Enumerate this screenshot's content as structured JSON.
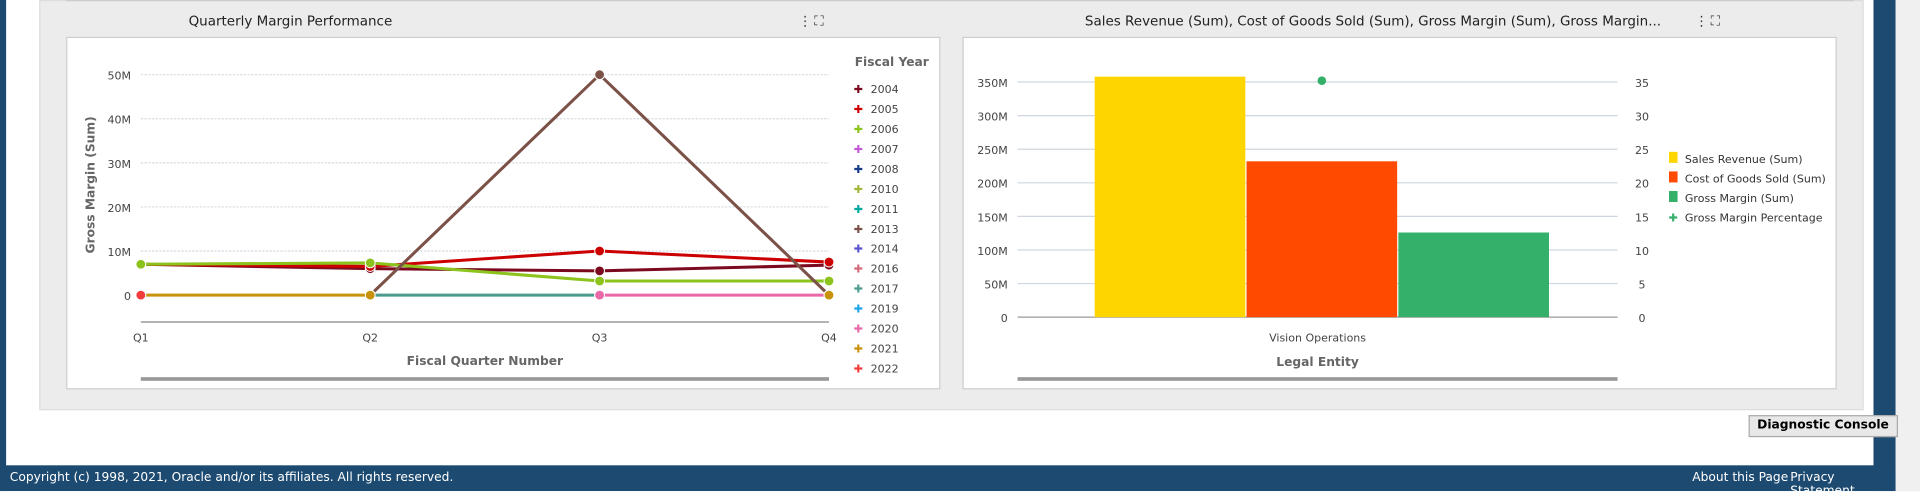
{
  "left_panel": {
    "title": "Quarterly Margin Performance",
    "menu_icon": "more-vertical-icon",
    "maximize_icon": "maximize-icon"
  },
  "right_panel": {
    "title": "Sales Revenue (Sum), Cost of Goods Sold (Sum), Gross Margin (Sum), Gross Margin...",
    "menu_icon": "more-vertical-icon",
    "maximize_icon": "maximize-icon"
  },
  "chart_data": [
    {
      "type": "line",
      "title": "Quarterly Margin Performance",
      "xlabel": "Fiscal Quarter Number",
      "ylabel": "Gross Margin (Sum)",
      "categories": [
        "Q1",
        "Q2",
        "Q3",
        "Q4"
      ],
      "ylim": [
        0,
        50000000
      ],
      "yticks": [
        "0",
        "10M",
        "20M",
        "30M",
        "40M",
        "50M"
      ],
      "legend_title": "Fiscal Year",
      "legend_position": "right",
      "series": [
        {
          "name": "2004",
          "color": "#7b0a1f",
          "values": [
            7000000,
            6000000,
            5500000,
            6800000
          ]
        },
        {
          "name": "2005",
          "color": "#cc0000",
          "values": [
            7000000,
            6500000,
            10000000,
            7500000
          ]
        },
        {
          "name": "2006",
          "color": "#8cc31c",
          "values": [
            7000000,
            7300000,
            3200000,
            3200000
          ]
        },
        {
          "name": "2007",
          "color": "#c45bd6",
          "values": [
            null,
            null,
            null,
            null
          ]
        },
        {
          "name": "2008",
          "color": "#153a87",
          "values": [
            null,
            null,
            null,
            null
          ]
        },
        {
          "name": "2010",
          "color": "#a3b83b",
          "values": [
            null,
            null,
            null,
            null
          ]
        },
        {
          "name": "2011",
          "color": "#00a99d",
          "values": [
            null,
            null,
            null,
            null
          ]
        },
        {
          "name": "2013",
          "color": "#7b5148",
          "values": [
            null,
            0,
            50000000,
            0
          ]
        },
        {
          "name": "2014",
          "color": "#5a55cf",
          "values": [
            null,
            null,
            null,
            null
          ]
        },
        {
          "name": "2016",
          "color": "#d46a7a",
          "values": [
            null,
            null,
            null,
            null
          ]
        },
        {
          "name": "2017",
          "color": "#4b9c8e",
          "values": [
            null,
            0,
            0,
            null
          ]
        },
        {
          "name": "2019",
          "color": "#1ea6e8",
          "values": [
            null,
            null,
            null,
            null
          ]
        },
        {
          "name": "2020",
          "color": "#e868a8",
          "values": [
            null,
            null,
            0,
            0
          ]
        },
        {
          "name": "2021",
          "color": "#c8930b",
          "values": [
            0,
            0,
            null,
            0
          ]
        },
        {
          "name": "2022",
          "color": "#f23c3c",
          "values": [
            0,
            null,
            null,
            null
          ]
        }
      ]
    },
    {
      "type": "bar",
      "title": "Sales Revenue (Sum), Cost of Goods Sold (Sum), Gross Margin (Sum), Gross Margin...",
      "xlabel": "Legal Entity",
      "categories": [
        "Vision Operations"
      ],
      "ylim": [
        0,
        350000000
      ],
      "yticks": [
        "0",
        "50M",
        "100M",
        "150M",
        "200M",
        "250M",
        "300M",
        "350M"
      ],
      "y2lim": [
        0,
        35
      ],
      "y2ticks": [
        "0",
        "5",
        "10",
        "15",
        "20",
        "25",
        "30",
        "35"
      ],
      "legend_position": "right",
      "series": [
        {
          "name": "Sales Revenue (Sum)",
          "color": "#ffd500",
          "type": "bar",
          "values": [
            358000000
          ]
        },
        {
          "name": "Cost of Goods Sold (Sum)",
          "color": "#ff4a00",
          "type": "bar",
          "values": [
            232000000
          ]
        },
        {
          "name": "Gross Margin (Sum)",
          "color": "#35b06a",
          "type": "bar",
          "values": [
            126000000
          ]
        },
        {
          "name": "Gross Margin Percentage",
          "color": "#35b06a",
          "type": "point",
          "axis": "y2",
          "values": [
            35.2
          ]
        }
      ]
    }
  ],
  "diagnostic_button": "Diagnostic Console",
  "footer": {
    "copyright": "Copyright (c) 1998, 2021, Oracle and/or its affiliates. All rights reserved.",
    "about": "About this Page",
    "privacy": "Privacy Statement"
  }
}
